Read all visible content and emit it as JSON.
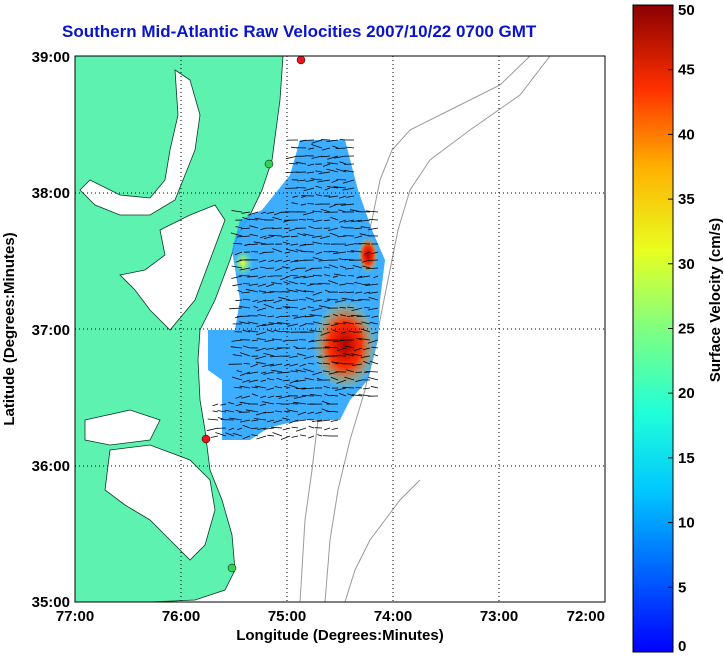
{
  "title": "Southern Mid-Atlantic Raw Velocities 2007/10/22 0700 GMT",
  "x_axis": {
    "label": "Longitude (Degrees:Minutes)",
    "ticks": [
      "77:00",
      "76:00",
      "75:00",
      "74:00",
      "73:00",
      "72:00"
    ]
  },
  "y_axis": {
    "label": "Latitude (Degrees:Minutes)",
    "ticks": [
      "39:00",
      "38:00",
      "37:00",
      "36:00",
      "35:00"
    ]
  },
  "colorbar": {
    "label": "Surface Velocity (cm/s)",
    "ticks": [
      "50",
      "45",
      "40",
      "35",
      "30",
      "25",
      "20",
      "15",
      "10",
      "5",
      "0"
    ],
    "range": [
      0,
      50
    ]
  },
  "colors": {
    "title": "#0a14c8",
    "land": "#5ef2b0",
    "bathymetry": "#9a9a9a",
    "station": "#e8141e",
    "station_alt": "#32d250"
  },
  "map": {
    "lon_range": [
      -77,
      -72
    ],
    "lat_range": [
      35,
      39
    ],
    "grid": "dotted"
  }
}
